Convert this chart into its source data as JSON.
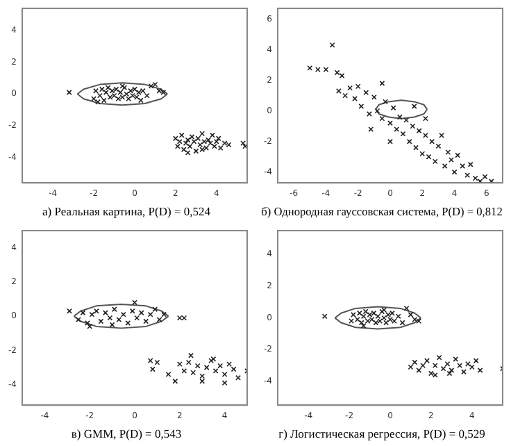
{
  "chart_data": [
    {
      "type": "scatter",
      "title": "а) Реальная картина, P(D) = 0,524",
      "xlim": [
        -5.5,
        5.5
      ],
      "ylim": [
        -5.6,
        5.4
      ],
      "xticks": [
        -4,
        -2,
        0,
        2,
        4
      ],
      "yticks": [
        -4,
        -2,
        0,
        2,
        4
      ],
      "grid": false,
      "legend": false,
      "marker": "cross",
      "series": [
        {
          "color": "#222222",
          "x": [
            -3.2,
            -2.0,
            -1.9,
            -1.7,
            -1.6,
            -1.5,
            -1.4,
            -1.3,
            -1.2,
            -1.1,
            -1.0,
            -0.9,
            -0.8,
            -0.7,
            -0.6,
            -0.5,
            -0.4,
            -0.3,
            -0.2,
            -0.1,
            0.0,
            0.1,
            0.2,
            0.3,
            0.4,
            0.6,
            0.8,
            1.0,
            1.2,
            1.4,
            -1.8,
            -0.6,
            2.0,
            2.1,
            2.2,
            2.3,
            2.4,
            2.5,
            2.6,
            2.7,
            2.8,
            2.9,
            3.0,
            3.1,
            3.2,
            3.3,
            3.4,
            3.5,
            3.6,
            3.7,
            3.8,
            3.9,
            4.0,
            4.1,
            4.2,
            4.4,
            4.6,
            5.3,
            5.4,
            2.6,
            3.3
          ],
          "values": [
            0.1,
            -0.3,
            0.2,
            -0.1,
            0.3,
            -0.4,
            0.1,
            0.4,
            -0.2,
            0.2,
            -0.1,
            0.3,
            -0.3,
            0.1,
            -0.2,
            0.4,
            0.0,
            -0.3,
            0.2,
            -0.1,
            0.3,
            -0.2,
            0.1,
            -0.4,
            0.2,
            -0.1,
            0.5,
            0.6,
            0.2,
            0.1,
            -0.5,
            0.5,
            -2.8,
            -3.3,
            -3.0,
            -2.6,
            -3.5,
            -3.1,
            -2.9,
            -3.3,
            -2.7,
            -3.0,
            -3.6,
            -2.8,
            -3.2,
            -2.5,
            -3.0,
            -3.4,
            -2.9,
            -3.1,
            -2.6,
            -3.3,
            -3.0,
            -2.8,
            -3.4,
            -3.1,
            -3.2,
            -3.1,
            -3.3,
            -3.7,
            -3.5
          ]
        },
        {
          "type": "line",
          "marker": "none",
          "color": "#555555",
          "x": [
            -2.8,
            -2.5,
            -1.7,
            -0.6,
            0.5,
            1.3,
            1.6
          ],
          "values": [
            0,
            0.3,
            0.6,
            0.7,
            0.6,
            0.3,
            0
          ]
        },
        {
          "type": "line",
          "marker": "none",
          "color": "#555555",
          "x": [
            -2.8,
            -2.5,
            -1.7,
            -0.6,
            0.5,
            1.3,
            1.6
          ],
          "values": [
            0,
            -0.3,
            -0.6,
            -0.7,
            -0.6,
            -0.3,
            0
          ]
        }
      ]
    },
    {
      "type": "scatter",
      "title": "б) Однородная гауссовская система, P(D) = 0,812",
      "xlim": [
        -7,
        7
      ],
      "ylim": [
        -4.7,
        6.7
      ],
      "xticks": [
        -6,
        -4,
        -2,
        0,
        2,
        4,
        6
      ],
      "yticks": [
        -4,
        -2,
        0,
        2,
        4,
        6
      ],
      "grid": false,
      "legend": false,
      "marker": "cross",
      "series": [
        {
          "color": "#222222",
          "x": [
            -5.0,
            -4.5,
            -4.0,
            -3.6,
            -3.3,
            -3.0,
            -3.2,
            -2.8,
            -2.5,
            -2.2,
            -2.0,
            -1.8,
            -1.5,
            -1.3,
            -1.0,
            -0.8,
            -0.5,
            -0.3,
            0.0,
            0.2,
            0.4,
            0.6,
            0.8,
            1.0,
            1.2,
            1.4,
            1.6,
            1.8,
            2.0,
            2.2,
            2.4,
            2.6,
            2.8,
            3.0,
            3.2,
            3.4,
            3.6,
            3.8,
            4.0,
            4.2,
            4.5,
            4.8,
            5.0,
            5.3,
            5.6,
            5.9,
            6.3,
            -1.2,
            0.0,
            1.5,
            2.2,
            -0.5
          ],
          "values": [
            2.8,
            2.7,
            2.7,
            4.3,
            2.5,
            2.3,
            1.3,
            1.0,
            1.5,
            0.8,
            1.6,
            0.3,
            1.2,
            -0.2,
            0.9,
            0.0,
            -0.5,
            0.6,
            -0.8,
            0.2,
            -1.2,
            -0.4,
            -1.5,
            -0.6,
            -2.0,
            -1.0,
            -2.4,
            -1.3,
            -2.8,
            -1.6,
            -3.0,
            -2.0,
            -3.3,
            -2.3,
            -1.6,
            -3.6,
            -2.7,
            -3.2,
            -4.0,
            -2.9,
            -3.6,
            -4.2,
            -3.5,
            -4.4,
            -4.6,
            -4.3,
            -4.6,
            -1.2,
            -2.0,
            0.3,
            -0.5,
            1.8
          ]
        },
        {
          "type": "line",
          "marker": "none",
          "color": "#555555",
          "x": [
            -0.9,
            -0.7,
            -0.1,
            0.7,
            1.5,
            2.1,
            2.3
          ],
          "values": [
            0.1,
            0.4,
            0.6,
            0.7,
            0.6,
            0.4,
            0.1
          ]
        },
        {
          "type": "line",
          "marker": "none",
          "color": "#555555",
          "x": [
            -0.9,
            -0.7,
            -0.1,
            0.7,
            1.5,
            2.1,
            2.3
          ],
          "values": [
            0.1,
            -0.2,
            -0.4,
            -0.5,
            -0.4,
            -0.2,
            0.1
          ]
        }
      ]
    },
    {
      "type": "scatter",
      "title": "в) GMM, P(D) = 0,543",
      "xlim": [
        -5,
        5
      ],
      "ylim": [
        -5.2,
        5
      ],
      "xticks": [
        -4,
        -2,
        0,
        2,
        4
      ],
      "yticks": [
        -4,
        -2,
        0,
        2,
        4
      ],
      "grid": false,
      "legend": false,
      "marker": "cross",
      "series": [
        {
          "color": "#222222",
          "x": [
            -2.9,
            -2.5,
            -2.3,
            -2.1,
            -1.9,
            -1.7,
            -1.5,
            -1.3,
            -1.1,
            -0.9,
            -0.7,
            -0.5,
            -0.3,
            -0.1,
            0.1,
            0.3,
            0.5,
            0.7,
            0.9,
            1.1,
            1.3,
            -2.0,
            -1.0,
            0.0,
            2.0,
            2.2,
            0.7,
            1.0,
            0.8,
            1.5,
            1.8,
            2.0,
            2.2,
            2.4,
            2.6,
            2.8,
            3.0,
            3.2,
            3.4,
            3.6,
            3.8,
            4.0,
            4.2,
            4.4,
            4.6,
            5.0,
            2.5,
            3.5,
            3.0,
            4.0
          ],
          "values": [
            0.3,
            -0.2,
            0.2,
            -0.4,
            0.1,
            0.3,
            -0.3,
            0.2,
            -0.1,
            0.4,
            -0.2,
            0.1,
            -0.4,
            0.3,
            -0.1,
            0.2,
            -0.3,
            0.1,
            0.4,
            -0.2,
            0.1,
            -0.6,
            -0.5,
            0.8,
            -0.1,
            -0.1,
            -2.6,
            -2.7,
            -3.1,
            -3.4,
            -3.8,
            -2.8,
            -3.2,
            -2.7,
            -3.3,
            -2.9,
            -3.5,
            -3.0,
            -2.6,
            -3.2,
            -2.9,
            -3.4,
            -2.8,
            -3.1,
            -3.6,
            -3.2,
            -2.3,
            -2.5,
            -3.8,
            -3.9
          ]
        },
        {
          "type": "line",
          "marker": "none",
          "color": "#555555",
          "x": [
            -2.7,
            -2.4,
            -1.7,
            -0.6,
            0.5,
            1.2,
            1.5
          ],
          "values": [
            0,
            0.3,
            0.6,
            0.7,
            0.6,
            0.3,
            0
          ]
        },
        {
          "type": "line",
          "marker": "none",
          "color": "#555555",
          "x": [
            -2.7,
            -2.4,
            -1.7,
            -0.6,
            0.5,
            1.2,
            1.5
          ],
          "values": [
            0,
            -0.3,
            -0.6,
            -0.7,
            -0.6,
            -0.3,
            0
          ]
        }
      ]
    },
    {
      "type": "scatter",
      "title": "г) Логистическая регрессия, P(D) = 0,529",
      "xlim": [
        -5.5,
        5.5
      ],
      "ylim": [
        -5.5,
        5.5
      ],
      "xticks": [
        -4,
        -2,
        0,
        2,
        4
      ],
      "yticks": [
        -4,
        -2,
        0,
        2,
        4
      ],
      "grid": false,
      "legend": false,
      "marker": "cross",
      "series": [
        {
          "color": "#222222",
          "x": [
            -3.2,
            -1.9,
            -1.8,
            -1.6,
            -1.5,
            -1.4,
            -1.3,
            -1.2,
            -1.1,
            -1.0,
            -0.9,
            -0.8,
            -0.7,
            -0.6,
            -0.5,
            -0.4,
            -0.3,
            -0.2,
            -0.1,
            0.0,
            0.1,
            0.2,
            0.4,
            0.6,
            0.8,
            1.0,
            1.2,
            1.4,
            -1.3,
            -0.3,
            1.0,
            1.2,
            1.4,
            1.6,
            1.8,
            2.0,
            2.2,
            2.4,
            2.6,
            2.8,
            3.0,
            3.2,
            3.4,
            3.6,
            3.8,
            4.0,
            4.2,
            4.4,
            5.5,
            2.2,
            2.9
          ],
          "values": [
            0.1,
            -0.2,
            0.2,
            -0.1,
            0.3,
            -0.3,
            0.1,
            0.4,
            -0.2,
            0.2,
            -0.1,
            0.3,
            -0.3,
            0.1,
            -0.2,
            0.4,
            0.0,
            -0.3,
            0.2,
            -0.1,
            0.3,
            -0.2,
            0.1,
            -0.3,
            0.6,
            0.2,
            -0.1,
            -0.2,
            -0.5,
            0.5,
            -3.1,
            -2.8,
            -3.3,
            -3.0,
            -2.7,
            -3.5,
            -3.0,
            -2.5,
            -3.2,
            -2.9,
            -3.3,
            -2.6,
            -3.0,
            -3.4,
            -2.9,
            -3.1,
            -2.7,
            -3.3,
            -3.2,
            -3.6,
            -3.5
          ]
        },
        {
          "type": "line",
          "marker": "none",
          "color": "#555555",
          "x": [
            -2.7,
            -2.4,
            -1.7,
            -0.6,
            0.5,
            1.2,
            1.5
          ],
          "values": [
            0,
            0.3,
            0.6,
            0.7,
            0.6,
            0.3,
            0
          ]
        },
        {
          "type": "line",
          "marker": "none",
          "color": "#555555",
          "x": [
            -2.7,
            -2.4,
            -1.7,
            -0.6,
            0.5,
            1.2,
            1.5
          ],
          "values": [
            0,
            -0.3,
            -0.6,
            -0.7,
            -0.6,
            -0.3,
            0
          ]
        }
      ]
    }
  ]
}
